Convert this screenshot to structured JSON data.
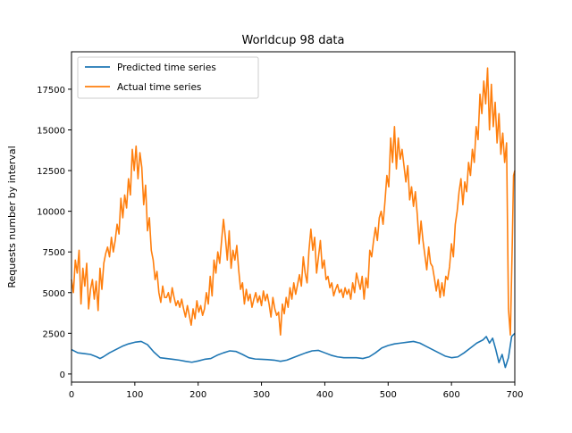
{
  "chart_data": {
    "type": "line",
    "title": "Worldcup 98 data",
    "xlabel": "",
    "ylabel": "Requests number by interval",
    "xlim": [
      0,
      700
    ],
    "ylim": [
      -500,
      19800
    ],
    "x_ticks": [
      0,
      100,
      200,
      300,
      400,
      500,
      600,
      700
    ],
    "y_ticks": [
      0,
      2500,
      5000,
      7500,
      10000,
      12500,
      15000,
      17500
    ],
    "grid": false,
    "legend_position": "upper-left",
    "series": [
      {
        "name": "Predicted time series",
        "color": "#1f77b4",
        "x": [
          0,
          10,
          20,
          30,
          40,
          45,
          50,
          60,
          70,
          80,
          90,
          100,
          110,
          120,
          130,
          140,
          150,
          160,
          170,
          180,
          190,
          200,
          210,
          220,
          230,
          240,
          250,
          260,
          270,
          280,
          290,
          300,
          310,
          320,
          330,
          340,
          350,
          360,
          370,
          380,
          390,
          400,
          410,
          420,
          430,
          440,
          450,
          460,
          470,
          480,
          490,
          500,
          510,
          520,
          530,
          540,
          550,
          560,
          570,
          580,
          590,
          600,
          610,
          620,
          630,
          640,
          650,
          655,
          660,
          665,
          670,
          675,
          680,
          685,
          690,
          695,
          700
        ],
        "y": [
          1500,
          1300,
          1250,
          1200,
          1050,
          950,
          1050,
          1300,
          1500,
          1700,
          1850,
          1950,
          2000,
          1800,
          1350,
          1000,
          950,
          900,
          850,
          780,
          720,
          800,
          900,
          950,
          1150,
          1300,
          1420,
          1380,
          1200,
          1000,
          920,
          900,
          880,
          850,
          780,
          850,
          1000,
          1150,
          1300,
          1420,
          1450,
          1300,
          1150,
          1050,
          1000,
          1000,
          1000,
          950,
          1050,
          1300,
          1600,
          1750,
          1850,
          1900,
          1950,
          2000,
          1900,
          1700,
          1500,
          1300,
          1100,
          1000,
          1050,
          1300,
          1600,
          1900,
          2100,
          2300,
          1900,
          2200,
          1500,
          700,
          1200,
          400,
          1000,
          2300,
          2500
        ]
      },
      {
        "name": "Actual time series",
        "color": "#ff7f0e",
        "x": [
          0,
          3,
          6,
          9,
          12,
          15,
          18,
          21,
          24,
          27,
          30,
          33,
          36,
          39,
          42,
          45,
          48,
          51,
          54,
          57,
          60,
          63,
          66,
          69,
          72,
          75,
          78,
          81,
          84,
          87,
          90,
          93,
          96,
          99,
          102,
          105,
          108,
          111,
          114,
          117,
          120,
          123,
          126,
          129,
          132,
          135,
          138,
          141,
          144,
          147,
          150,
          153,
          156,
          159,
          162,
          165,
          168,
          171,
          174,
          177,
          180,
          183,
          186,
          189,
          192,
          195,
          198,
          201,
          204,
          207,
          210,
          213,
          216,
          219,
          222,
          225,
          228,
          231,
          234,
          237,
          240,
          243,
          246,
          249,
          252,
          255,
          258,
          261,
          264,
          267,
          270,
          273,
          276,
          279,
          282,
          285,
          288,
          291,
          294,
          297,
          300,
          303,
          306,
          309,
          312,
          315,
          318,
          321,
          324,
          327,
          330,
          333,
          336,
          339,
          342,
          345,
          348,
          351,
          354,
          357,
          360,
          363,
          366,
          369,
          372,
          375,
          378,
          381,
          384,
          387,
          390,
          393,
          396,
          399,
          402,
          405,
          408,
          411,
          414,
          417,
          420,
          423,
          426,
          429,
          432,
          435,
          438,
          441,
          444,
          447,
          450,
          453,
          456,
          459,
          462,
          465,
          468,
          471,
          474,
          477,
          480,
          483,
          486,
          489,
          492,
          495,
          498,
          501,
          504,
          507,
          510,
          513,
          516,
          519,
          522,
          525,
          528,
          531,
          534,
          537,
          540,
          543,
          546,
          549,
          552,
          555,
          558,
          561,
          564,
          567,
          570,
          573,
          576,
          579,
          582,
          585,
          588,
          591,
          594,
          597,
          600,
          603,
          606,
          609,
          612,
          615,
          618,
          621,
          624,
          627,
          630,
          633,
          636,
          639,
          642,
          645,
          648,
          651,
          654,
          657,
          660,
          663,
          666,
          669,
          672,
          675,
          678,
          681,
          684,
          687,
          690,
          693,
          696,
          698,
          700
        ],
        "y": [
          5800,
          5000,
          7000,
          6200,
          7600,
          4300,
          6500,
          5400,
          6800,
          4000,
          5200,
          5800,
          4600,
          5700,
          3900,
          6500,
          5200,
          6800,
          7400,
          7800,
          7200,
          8400,
          7500,
          8200,
          9200,
          8600,
          10800,
          9600,
          11000,
          10200,
          12000,
          11000,
          13800,
          12500,
          14000,
          12000,
          13600,
          12700,
          10400,
          11600,
          8800,
          9600,
          7600,
          7000,
          5800,
          6300,
          5000,
          4400,
          5400,
          4700,
          4700,
          5000,
          4400,
          5300,
          4700,
          4200,
          4500,
          4100,
          4600,
          4000,
          3500,
          4200,
          3600,
          3000,
          4000,
          3400,
          4500,
          3800,
          4200,
          3600,
          4000,
          5000,
          4300,
          6000,
          4800,
          7000,
          6200,
          7500,
          6800,
          8200,
          9500,
          8400,
          7000,
          8800,
          6500,
          7600,
          7000,
          7900,
          6400,
          5200,
          5600,
          4300,
          5200,
          4500,
          4900,
          4100,
          4600,
          5000,
          4400,
          4800,
          4200,
          5100,
          4500,
          4900,
          4300,
          3500,
          4700,
          4000,
          3600,
          3800,
          2400,
          4300,
          3700,
          4700,
          4100,
          5300,
          4600,
          5600,
          4900,
          5500,
          6100,
          5400,
          7200,
          6200,
          5600,
          7600,
          8900,
          7600,
          8400,
          6200,
          7200,
          8200,
          6500,
          7000,
          5800,
          6000,
          5300,
          5600,
          4800,
          5200,
          5500,
          5000,
          5200,
          4700,
          5300,
          4900,
          5200,
          4600,
          5600,
          5000,
          6200,
          5700,
          5200,
          6000,
          4600,
          5900,
          5300,
          7600,
          7200,
          8200,
          9000,
          8200,
          9600,
          10000,
          9200,
          10600,
          12200,
          11500,
          14500,
          13000,
          15200,
          12600,
          14500,
          13200,
          13800,
          12800,
          11800,
          12800,
          10700,
          11500,
          10300,
          11200,
          9800,
          8000,
          9400,
          8200,
          7300,
          6400,
          7800,
          6800,
          6600,
          5900,
          5100,
          5800,
          4700,
          5600,
          4800,
          6000,
          5800,
          6600,
          8000,
          7200,
          9200,
          10000,
          11200,
          12000,
          10400,
          11800,
          11200,
          13000,
          12200,
          13800,
          13000,
          15200,
          14400,
          17200,
          16000,
          18000,
          16600,
          18800,
          15000,
          17800,
          15200,
          16700,
          14200,
          16000,
          13500,
          14800,
          13000,
          14200,
          4000,
          2400,
          8000,
          12200,
          12500
        ]
      }
    ]
  }
}
